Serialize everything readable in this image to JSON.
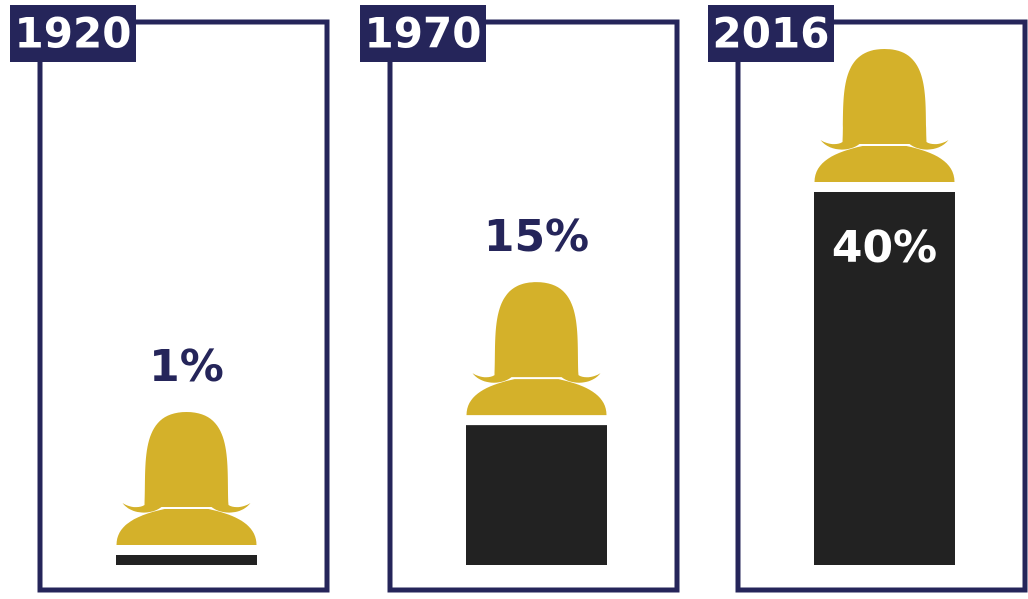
{
  "chart_data": {
    "type": "bar",
    "categories": [
      "1920",
      "1970",
      "2016"
    ],
    "values": [
      1,
      15,
      40
    ],
    "value_labels": [
      "1%",
      "15%",
      "40%"
    ],
    "color": "#222222",
    "icon_color": "#d4b12a",
    "frame_color": "#25255a"
  }
}
